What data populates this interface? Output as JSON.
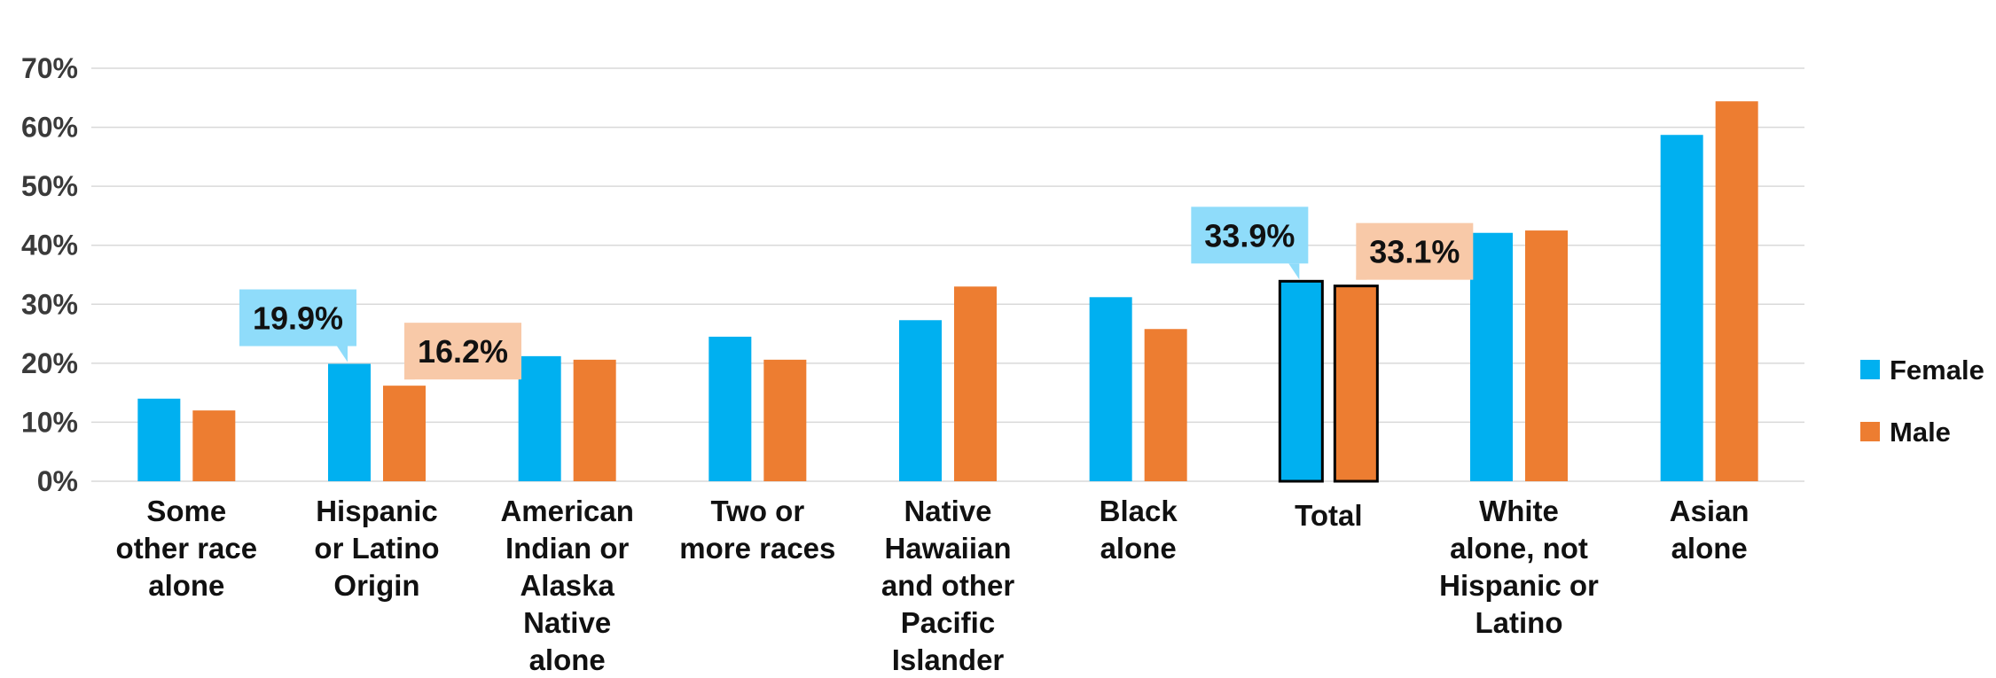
{
  "chart_data": {
    "type": "bar",
    "title": "",
    "xlabel": "",
    "ylabel": "",
    "ylim": [
      0,
      70
    ],
    "y_ticks": [
      "0%",
      "10%",
      "20%",
      "30%",
      "40%",
      "50%",
      "60%",
      "70%"
    ],
    "grid": true,
    "legend_position": "right",
    "categories": [
      "Some other race alone",
      "Hispanic or Latino Origin",
      "American Indian or Alaska Native alone",
      "Two or more races",
      "Native Hawaiian and other Pacific Islander",
      "Black alone",
      "Total",
      "White alone, not Hispanic or Latino",
      "Asian alone"
    ],
    "category_lines": [
      [
        "Some",
        "other race",
        "alone"
      ],
      [
        "Hispanic",
        "or Latino",
        "Origin"
      ],
      [
        "American",
        "Indian or",
        "Alaska",
        "Native",
        "alone"
      ],
      [
        "Two or",
        "more races"
      ],
      [
        "Native",
        "Hawaiian",
        "and other",
        "Pacific",
        "Islander"
      ],
      [
        "Black",
        "alone"
      ],
      [
        "Total"
      ],
      [
        "White",
        "alone, not",
        "Hispanic or",
        "Latino"
      ],
      [
        "Asian",
        "alone"
      ]
    ],
    "highlight_category": "Total",
    "series": [
      {
        "name": "Female",
        "color": "#00b0f0",
        "values": [
          14.0,
          19.9,
          21.2,
          24.5,
          27.3,
          31.2,
          33.9,
          42.1,
          58.7
        ]
      },
      {
        "name": "Male",
        "color": "#ed7d31",
        "values": [
          12.0,
          16.2,
          20.6,
          20.6,
          33.0,
          25.8,
          33.1,
          42.5,
          64.4
        ]
      }
    ],
    "callouts": [
      {
        "category_index": 1,
        "series_index": 0,
        "label": "19.9%"
      },
      {
        "category_index": 1,
        "series_index": 1,
        "label": "16.2%"
      },
      {
        "category_index": 6,
        "series_index": 0,
        "label": "33.9%"
      },
      {
        "category_index": 6,
        "series_index": 1,
        "label": "33.1%"
      }
    ],
    "colors": {
      "female": "#00b0f0",
      "male": "#ed7d31",
      "female_callout": "#8fdcfa",
      "male_callout": "#f8c9a8",
      "highlight_label": "#00a04a",
      "grid": "#d9d9d9"
    }
  }
}
